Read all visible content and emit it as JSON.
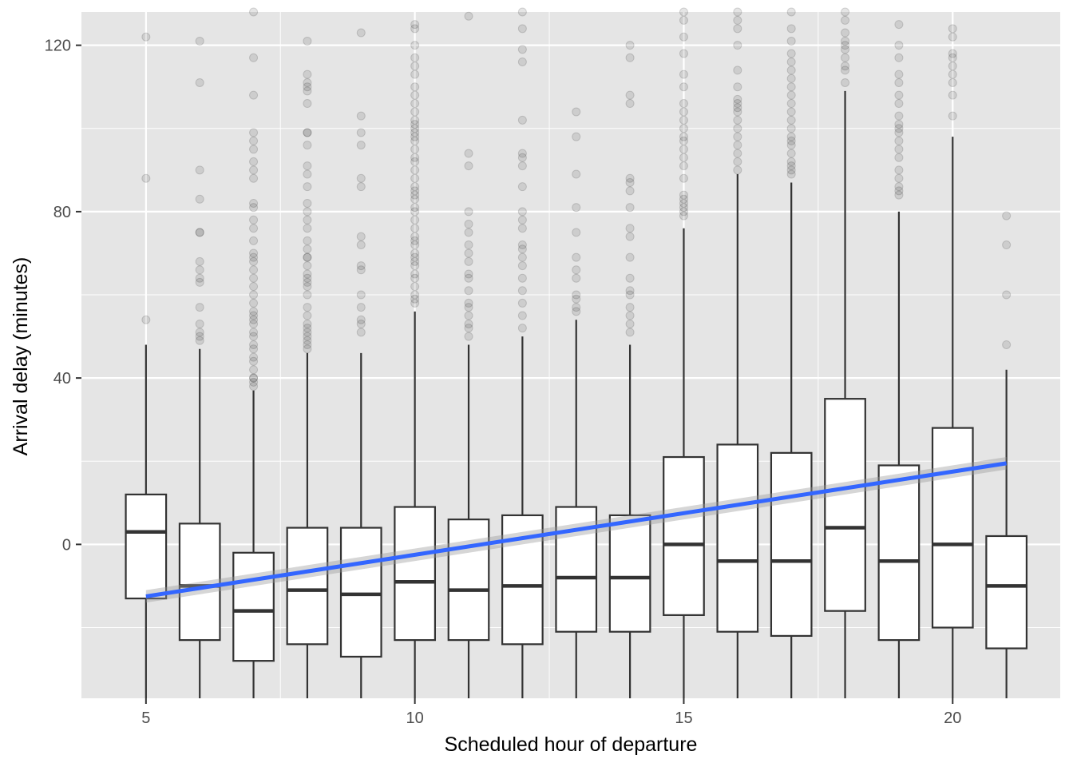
{
  "chart_data": {
    "type": "boxplot",
    "xlabel": "Scheduled hour of departure",
    "ylabel": "Arrival delay (minutes)",
    "xlim": [
      3.8,
      22.0
    ],
    "ylim": [
      -37,
      128
    ],
    "x_ticks": [
      5,
      10,
      15,
      20
    ],
    "x_tick_labels": [
      "5",
      "10",
      "15",
      "20"
    ],
    "y_ticks": [
      0,
      40,
      80,
      120
    ],
    "y_tick_labels": [
      "0",
      "40",
      "80",
      "120"
    ],
    "panel_background": "#e5e5e5",
    "grid_color": "#ffffff",
    "grid": true,
    "box_fill": "#ffffff",
    "box_stroke": "#333333",
    "outlier_color": "#000000",
    "outlier_alpha": 0.1,
    "trend_color": "#3366ff",
    "trend_ribbon_color": "#999999",
    "boxes": [
      {
        "x": 5,
        "lower_whisker": -37,
        "q1": -13,
        "median": 3,
        "q3": 12,
        "upper_whisker": 48,
        "outliers": [
          122,
          88,
          54
        ]
      },
      {
        "x": 6,
        "lower_whisker": -37,
        "q1": -23,
        "median": -10,
        "q3": 5,
        "upper_whisker": 47,
        "outliers": [
          121,
          111,
          90,
          83,
          75,
          75,
          68,
          66,
          64,
          63,
          57,
          53,
          51,
          50,
          49
        ]
      },
      {
        "x": 7,
        "lower_whisker": -37,
        "q1": -28,
        "median": -16,
        "q3": -2,
        "upper_whisker": 37,
        "outliers": [
          128,
          117,
          108,
          99,
          97,
          95,
          92,
          90,
          88,
          82,
          81,
          78,
          76,
          73,
          70,
          69,
          68,
          66,
          64,
          62,
          60,
          58,
          56,
          55,
          54,
          53,
          51,
          50,
          48,
          47,
          45,
          44,
          42,
          40,
          40,
          39,
          38
        ]
      },
      {
        "x": 8,
        "lower_whisker": -37,
        "q1": -24,
        "median": -11,
        "q3": 4,
        "upper_whisker": 46,
        "outliers": [
          121,
          113,
          111,
          110,
          109,
          106,
          99,
          99,
          96,
          91,
          89,
          86,
          82,
          80,
          78,
          76,
          73,
          71,
          69,
          69,
          67,
          65,
          64,
          63,
          62,
          60,
          57,
          55,
          53,
          52,
          51,
          50,
          49,
          48,
          47
        ]
      },
      {
        "x": 9,
        "lower_whisker": -37,
        "q1": -27,
        "median": -12,
        "q3": 4,
        "upper_whisker": 46,
        "outliers": [
          123,
          103,
          99,
          96,
          88,
          86,
          74,
          72,
          67,
          66,
          60,
          57,
          54,
          53,
          51
        ]
      },
      {
        "x": 10,
        "lower_whisker": -37,
        "q1": -23,
        "median": -9,
        "q3": 9,
        "upper_whisker": 56,
        "outliers": [
          125,
          124,
          120,
          117,
          115,
          113,
          110,
          108,
          106,
          104,
          102,
          101,
          100,
          99,
          98,
          97,
          95,
          93,
          92,
          90,
          88,
          86,
          85,
          84,
          83,
          81,
          80,
          78,
          76,
          74,
          73,
          72,
          70,
          69,
          68,
          67,
          65,
          64,
          62,
          60,
          59,
          58
        ]
      },
      {
        "x": 11,
        "lower_whisker": -37,
        "q1": -23,
        "median": -11,
        "q3": 6,
        "upper_whisker": 48,
        "outliers": [
          127,
          94,
          91,
          80,
          77,
          75,
          72,
          70,
          68,
          65,
          64,
          61,
          58,
          57,
          55,
          53,
          52,
          50
        ]
      },
      {
        "x": 12,
        "lower_whisker": -37,
        "q1": -24,
        "median": -10,
        "q3": 7,
        "upper_whisker": 50,
        "outliers": [
          128,
          124,
          119,
          116,
          102,
          94,
          93,
          91,
          86,
          80,
          78,
          76,
          72,
          71,
          69,
          67,
          64,
          61,
          58,
          55,
          52
        ]
      },
      {
        "x": 13,
        "lower_whisker": -37,
        "q1": -21,
        "median": -8,
        "q3": 9,
        "upper_whisker": 54,
        "outliers": [
          104,
          98,
          89,
          81,
          75,
          69,
          66,
          64,
          60,
          59,
          57,
          56
        ]
      },
      {
        "x": 14,
        "lower_whisker": -37,
        "q1": -21,
        "median": -8,
        "q3": 7,
        "upper_whisker": 48,
        "outliers": [
          120,
          117,
          108,
          106,
          88,
          87,
          85,
          81,
          76,
          74,
          69,
          64,
          61,
          60,
          57,
          55,
          53,
          51
        ]
      },
      {
        "x": 15,
        "lower_whisker": -37,
        "q1": -17,
        "median": 0,
        "q3": 21,
        "upper_whisker": 76,
        "outliers": [
          128,
          126,
          122,
          118,
          113,
          110,
          106,
          104,
          102,
          100,
          98,
          97,
          95,
          93,
          91,
          88,
          84,
          83,
          82,
          81,
          80,
          79
        ]
      },
      {
        "x": 16,
        "lower_whisker": -37,
        "q1": -21,
        "median": -4,
        "q3": 24,
        "upper_whisker": 89,
        "outliers": [
          128,
          126,
          124,
          120,
          114,
          110,
          107,
          106,
          105,
          104,
          102,
          100,
          98,
          96,
          94,
          92,
          90
        ]
      },
      {
        "x": 17,
        "lower_whisker": -37,
        "q1": -22,
        "median": -4,
        "q3": 22,
        "upper_whisker": 87,
        "outliers": [
          128,
          124,
          121,
          118,
          116,
          114,
          112,
          110,
          108,
          106,
          104,
          102,
          100,
          98,
          97,
          96,
          94,
          92,
          91,
          90,
          89
        ]
      },
      {
        "x": 18,
        "lower_whisker": -37,
        "q1": -16,
        "median": 4,
        "q3": 35,
        "upper_whisker": 109,
        "outliers": [
          128,
          126,
          123,
          121,
          120,
          119,
          117,
          115,
          114,
          111
        ]
      },
      {
        "x": 19,
        "lower_whisker": -37,
        "q1": -23,
        "median": -4,
        "q3": 19,
        "upper_whisker": 80,
        "outliers": [
          125,
          120,
          117,
          113,
          111,
          108,
          106,
          103,
          101,
          100,
          99,
          97,
          95,
          93,
          90,
          88,
          86,
          85,
          84
        ]
      },
      {
        "x": 20,
        "lower_whisker": -37,
        "q1": -20,
        "median": 0,
        "q3": 28,
        "upper_whisker": 98,
        "outliers": [
          124,
          122,
          118,
          117,
          115,
          113,
          111,
          108,
          103
        ]
      },
      {
        "x": 21,
        "lower_whisker": -37,
        "q1": -25,
        "median": -10,
        "q3": 2,
        "upper_whisker": 42,
        "outliers": [
          79,
          72,
          60,
          48
        ]
      }
    ],
    "trend_line": {
      "x": [
        5,
        21
      ],
      "y": [
        -12.5,
        19.5
      ],
      "ribbon_halfwidth": [
        1.5,
        1.5
      ]
    }
  }
}
